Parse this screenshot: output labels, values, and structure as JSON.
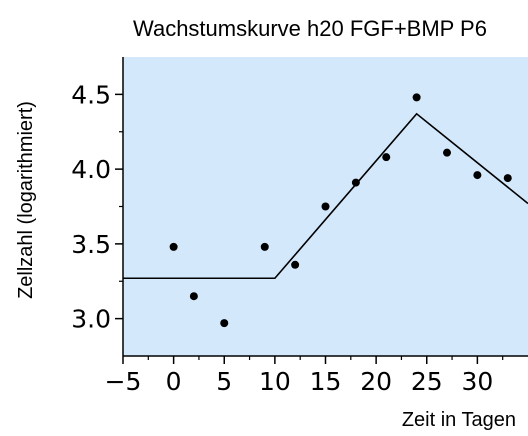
{
  "chart_data": {
    "type": "scatter",
    "title": "Wachstumskurve h20 FGF+BMP P6",
    "xlabel": "Zeit in Tagen",
    "ylabel": "Zellzahl (logarithmiert)",
    "xlim": [
      -5,
      35
    ],
    "ylim": [
      2.75,
      4.75
    ],
    "xticks": [
      -5,
      0,
      5,
      10,
      15,
      20,
      25,
      30
    ],
    "yticks": [
      3.0,
      3.5,
      4.0,
      4.5
    ],
    "ytick_labels": [
      "3.0",
      "3.5",
      "4.0",
      "4.5"
    ],
    "grid": false,
    "background_color": "#d4e8fb",
    "point_color": "#000000",
    "line_color": "#000000",
    "series": [
      {
        "type": "scatter",
        "x": [
          0,
          2,
          5,
          9,
          12,
          15,
          18,
          21,
          24,
          27,
          30,
          33
        ],
        "y": [
          3.48,
          3.15,
          2.97,
          3.48,
          3.36,
          3.75,
          3.91,
          4.08,
          4.48,
          4.11,
          3.96,
          3.94
        ]
      },
      {
        "type": "line",
        "x": [
          -5,
          10,
          24,
          35
        ],
        "y": [
          3.27,
          3.27,
          4.37,
          3.77
        ]
      }
    ]
  }
}
